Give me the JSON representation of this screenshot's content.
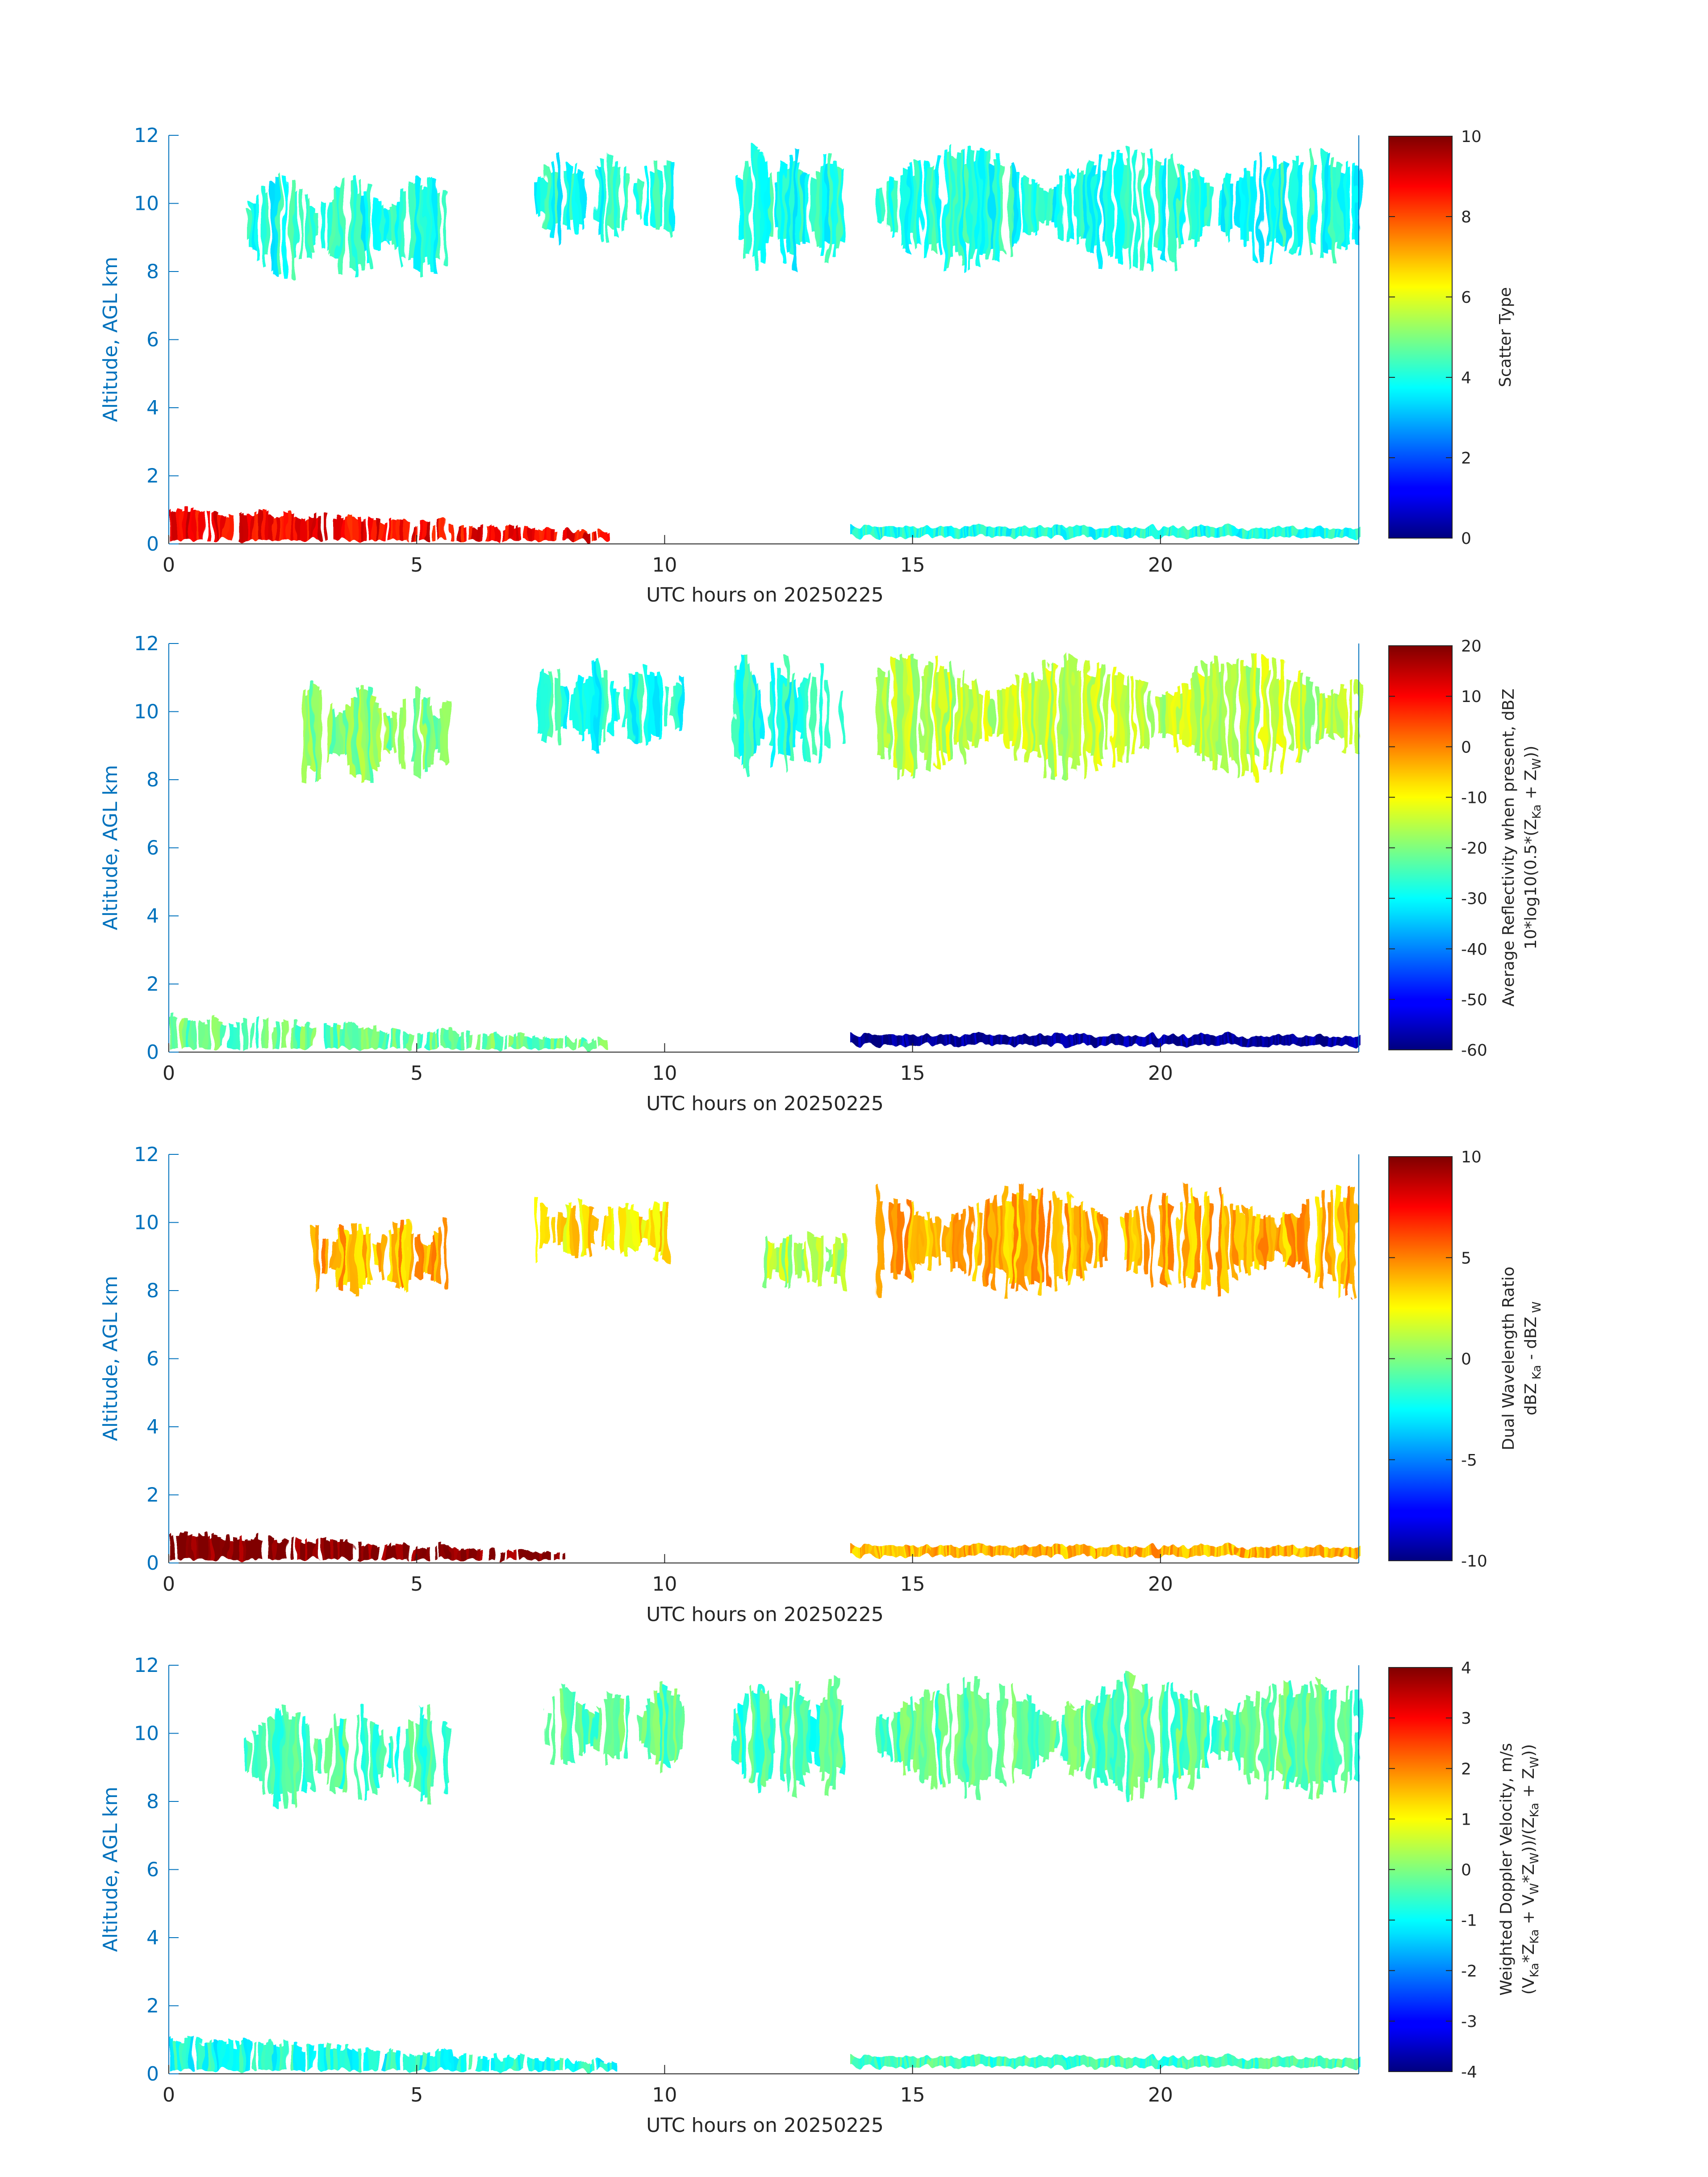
{
  "figure": {
    "panels": [
      {
        "id": "scatter-type",
        "ylabel": "Altitude, AGL km",
        "xlabel": "UTC hours on 20250225",
        "cb_label_1": "Scatter Type",
        "cb_label_2": "",
        "cb_ticks": [
          "10",
          "8",
          "6",
          "4",
          "2",
          "0"
        ],
        "clim": [
          0,
          10
        ]
      },
      {
        "id": "reflectivity",
        "ylabel": "Altitude, AGL km",
        "xlabel": "UTC hours on 20250225",
        "cb_label_1": "Average Reflectivity when present, dBZ",
        "cb_label_2": "10*log10(0.5*(Z_Ka + Z_W))",
        "cb_ticks": [
          "20",
          "10",
          "0",
          "-10",
          "-20",
          "-30",
          "-40",
          "-50",
          "-60"
        ],
        "clim": [
          -60,
          20
        ]
      },
      {
        "id": "dwr",
        "ylabel": "Altitude, AGL km",
        "xlabel": "UTC hours on 20250225",
        "cb_label_1": "Dual Wavelength Ratio",
        "cb_label_2": "dBZ_Ka - dBZ_W",
        "cb_ticks": [
          "10",
          "5",
          "0",
          "-5",
          "-10"
        ],
        "clim": [
          -10,
          10
        ]
      },
      {
        "id": "doppler",
        "ylabel": "Altitude, AGL km",
        "xlabel": "UTC hours on 20250225",
        "cb_label_1": "Weighted Doppler Velocity, m/s",
        "cb_label_2": "(V_Ka*Z_Ka + V_W*Z_W))/(Z_Ka + Z_W))",
        "cb_ticks": [
          "4",
          "3",
          "2",
          "1",
          "0",
          "-1",
          "-2",
          "-3",
          "-4"
        ],
        "clim": [
          -4,
          4
        ]
      }
    ],
    "x_ticks": [
      "0",
      "5",
      "10",
      "15",
      "20"
    ],
    "y_ticks": [
      "0",
      "2",
      "4",
      "6",
      "8",
      "10",
      "12"
    ],
    "colormap": "jet"
  },
  "chart_data": [
    {
      "type": "heatmap",
      "variable": "Scatter Type",
      "xlabel": "UTC hours on 20250225",
      "ylabel": "Altitude, AGL km",
      "xlim": [
        0,
        24
      ],
      "ylim": [
        0,
        12
      ],
      "clim": [
        0,
        10
      ],
      "regions": [
        {
          "x": [
            1.5,
            5.6
          ],
          "y": [
            7.8,
            10.9
          ],
          "value": 4
        },
        {
          "x": [
            7.4,
            10.3
          ],
          "y": [
            8.8,
            11.5
          ],
          "value": 4
        },
        {
          "x": [
            11.4,
            13.6
          ],
          "y": [
            8.0,
            11.8
          ],
          "value": 4
        },
        {
          "x": [
            14.3,
            24.0
          ],
          "y": [
            8.0,
            11.8
          ],
          "value": 4
        },
        {
          "x": [
            0.0,
            9.0
          ],
          "y": [
            0.1,
            1.2
          ],
          "value": 8.8
        },
        {
          "x": [
            13.8,
            24.0
          ],
          "y": [
            0.2,
            0.5
          ],
          "value": 4
        }
      ]
    },
    {
      "type": "heatmap",
      "variable": "Average Reflectivity when present, dBZ",
      "xlabel": "UTC hours on 20250225",
      "ylabel": "Altitude, AGL km",
      "xlim": [
        0,
        24
      ],
      "ylim": [
        0,
        12
      ],
      "clim": [
        -60,
        20
      ],
      "regions": [
        {
          "x": [
            2.7,
            5.6
          ],
          "y": [
            7.8,
            10.9
          ],
          "value": -20
        },
        {
          "x": [
            7.4,
            10.3
          ],
          "y": [
            8.8,
            11.5
          ],
          "value": -28
        },
        {
          "x": [
            11.4,
            13.6
          ],
          "y": [
            8.0,
            11.8
          ],
          "value": -28
        },
        {
          "x": [
            14.3,
            24.0
          ],
          "y": [
            8.0,
            11.8
          ],
          "value": -15
        },
        {
          "x": [
            0.0,
            9.0
          ],
          "y": [
            0.1,
            1.2
          ],
          "value": -22
        },
        {
          "x": [
            13.8,
            24.0
          ],
          "y": [
            0.2,
            0.5
          ],
          "value": -58
        }
      ]
    },
    {
      "type": "heatmap",
      "variable": "Dual Wavelength Ratio",
      "xlabel": "UTC hours on 20250225",
      "ylabel": "Altitude, AGL km",
      "xlim": [
        0,
        24
      ],
      "ylim": [
        0,
        12
      ],
      "clim": [
        -10,
        10
      ],
      "regions": [
        {
          "x": [
            2.9,
            5.6
          ],
          "y": [
            7.8,
            10.2
          ],
          "value": 4
        },
        {
          "x": [
            7.4,
            10.0
          ],
          "y": [
            8.8,
            10.8
          ],
          "value": 3
        },
        {
          "x": [
            12.0,
            13.6
          ],
          "y": [
            8.0,
            9.8
          ],
          "value": 1
        },
        {
          "x": [
            14.3,
            24.0
          ],
          "y": [
            7.8,
            11.2
          ],
          "value": 4
        },
        {
          "x": [
            0.0,
            8.0
          ],
          "y": [
            0.1,
            1.0
          ],
          "value": 10
        },
        {
          "x": [
            13.8,
            24.0
          ],
          "y": [
            0.2,
            0.5
          ],
          "value": 4
        }
      ]
    },
    {
      "type": "heatmap",
      "variable": "Weighted Doppler Velocity, m/s",
      "xlabel": "UTC hours on 20250225",
      "ylabel": "Altitude, AGL km",
      "xlim": [
        0,
        24
      ],
      "ylim": [
        0,
        12
      ],
      "clim": [
        -4,
        4
      ],
      "regions": [
        {
          "x": [
            1.5,
            5.6
          ],
          "y": [
            7.8,
            10.9
          ],
          "value": -0.5
        },
        {
          "x": [
            7.4,
            10.3
          ],
          "y": [
            8.8,
            11.5
          ],
          "value": -0.3
        },
        {
          "x": [
            11.4,
            13.6
          ],
          "y": [
            8.0,
            11.8
          ],
          "value": -0.5
        },
        {
          "x": [
            14.3,
            24.0
          ],
          "y": [
            8.0,
            11.8
          ],
          "value": -0.3
        },
        {
          "x": [
            0.0,
            9.0
          ],
          "y": [
            0.1,
            1.2
          ],
          "value": -0.8
        },
        {
          "x": [
            13.8,
            24.0
          ],
          "y": [
            0.2,
            0.5
          ],
          "value": -0.5
        }
      ]
    }
  ]
}
